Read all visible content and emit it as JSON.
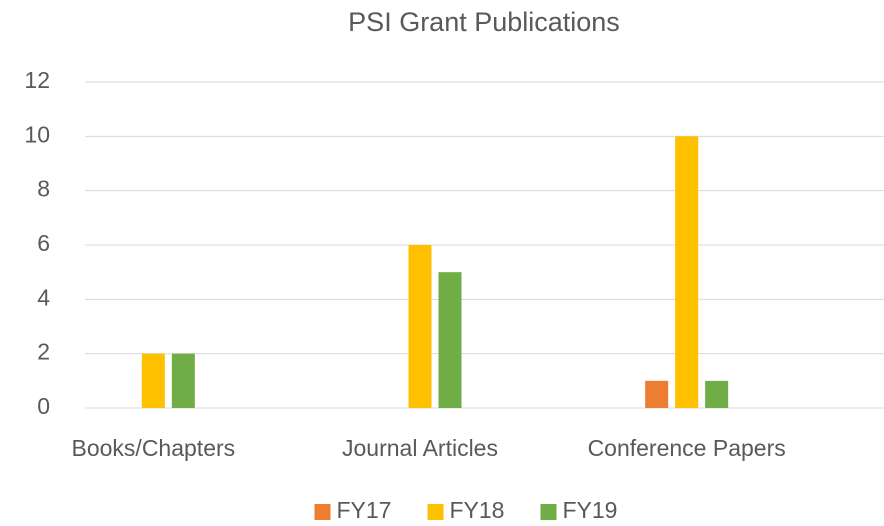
{
  "chart_data": {
    "type": "bar",
    "title": "PSI Grant Publications",
    "categories": [
      "Books/Chapters",
      "Journal Articles",
      "Conference Papers"
    ],
    "series": [
      {
        "name": "FY17",
        "color": "#ED7D31",
        "values": [
          0,
          0,
          1
        ]
      },
      {
        "name": "FY18",
        "color": "#FFC000",
        "values": [
          2,
          6,
          10
        ]
      },
      {
        "name": "FY19",
        "color": "#70AD47",
        "values": [
          2,
          5,
          1
        ]
      }
    ],
    "ylim": [
      0,
      12
    ],
    "yticks": [
      0,
      2,
      4,
      6,
      8,
      10,
      12
    ],
    "grid": true,
    "legend": "bottom"
  }
}
